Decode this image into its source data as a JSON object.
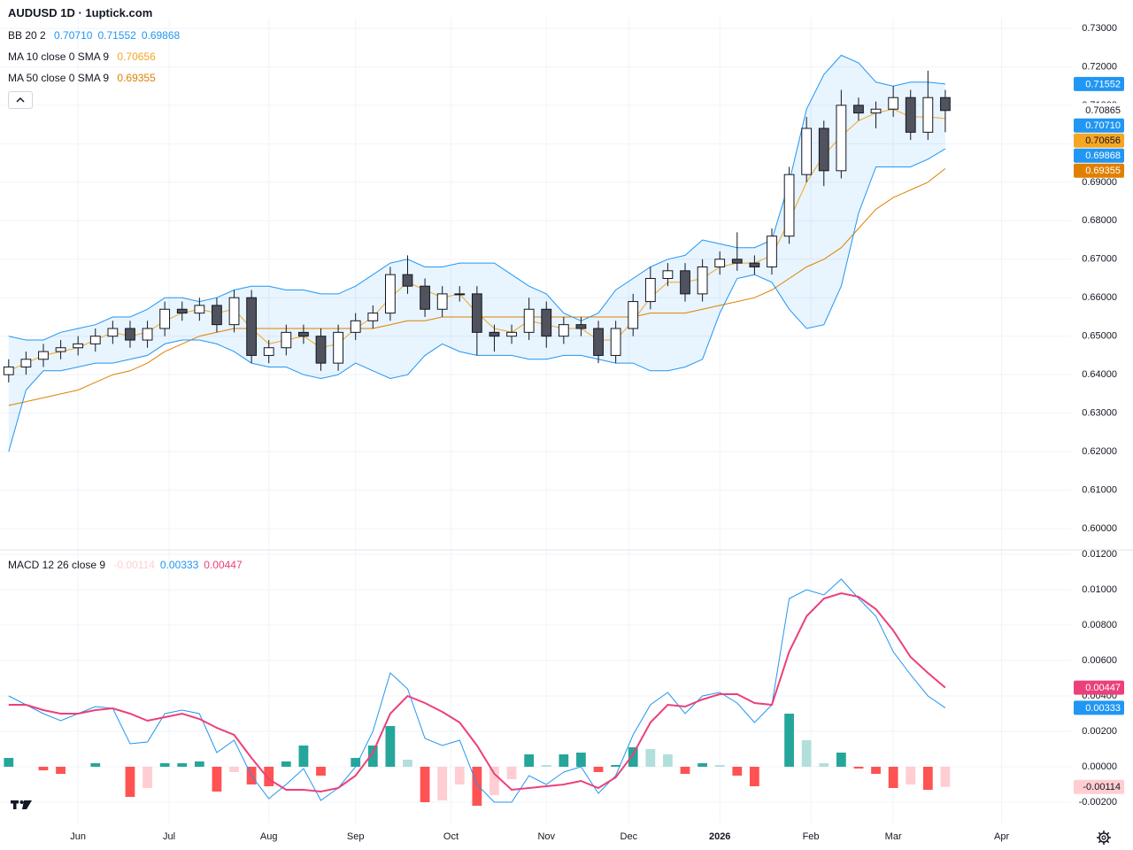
{
  "chart_data": {
    "type": "candlestick",
    "title": "AUDUSD 1D · 1uptick.com",
    "x": [
      2,
      6,
      10,
      14,
      18,
      22,
      26,
      30,
      34,
      38,
      42,
      46,
      50,
      54,
      58,
      62,
      66,
      70,
      74,
      78,
      82,
      86,
      90,
      94,
      98,
      102,
      106,
      110,
      114,
      118,
      122,
      126,
      130,
      134,
      138,
      142,
      146,
      150,
      154,
      158,
      162,
      166,
      170,
      174,
      178,
      182,
      186,
      190,
      194,
      198,
      202,
      206,
      210,
      214,
      218
    ],
    "open": [
      0.64,
      0.642,
      0.644,
      0.646,
      0.647,
      0.648,
      0.65,
      0.652,
      0.649,
      0.652,
      0.657,
      0.656,
      0.658,
      0.653,
      0.66,
      0.645,
      0.647,
      0.651,
      0.65,
      0.643,
      0.651,
      0.654,
      0.656,
      0.666,
      0.663,
      0.657,
      0.661,
      0.661,
      0.651,
      0.65,
      0.651,
      0.657,
      0.65,
      0.653,
      0.652,
      0.645,
      0.652,
      0.659,
      0.665,
      0.667,
      0.661,
      0.668,
      0.67,
      0.669,
      0.668,
      0.676,
      0.692,
      0.704,
      0.693,
      0.71,
      0.708,
      0.709,
      0.712,
      0.703,
      0.712
    ],
    "high": [
      0.644,
      0.646,
      0.648,
      0.649,
      0.65,
      0.652,
      0.654,
      0.654,
      0.654,
      0.659,
      0.659,
      0.66,
      0.66,
      0.662,
      0.662,
      0.649,
      0.653,
      0.653,
      0.652,
      0.653,
      0.656,
      0.658,
      0.668,
      0.671,
      0.665,
      0.663,
      0.663,
      0.663,
      0.653,
      0.653,
      0.66,
      0.659,
      0.655,
      0.655,
      0.654,
      0.654,
      0.661,
      0.668,
      0.669,
      0.669,
      0.67,
      0.672,
      0.677,
      0.671,
      0.678,
      0.694,
      0.707,
      0.706,
      0.714,
      0.712,
      0.711,
      0.715,
      0.714,
      0.719,
      0.714
    ],
    "low": [
      0.638,
      0.64,
      0.642,
      0.644,
      0.645,
      0.646,
      0.648,
      0.647,
      0.647,
      0.65,
      0.654,
      0.654,
      0.651,
      0.651,
      0.643,
      0.643,
      0.645,
      0.648,
      0.641,
      0.641,
      0.649,
      0.652,
      0.654,
      0.661,
      0.655,
      0.655,
      0.659,
      0.645,
      0.646,
      0.648,
      0.649,
      0.647,
      0.648,
      0.65,
      0.643,
      0.643,
      0.65,
      0.657,
      0.663,
      0.659,
      0.659,
      0.666,
      0.667,
      0.666,
      0.666,
      0.674,
      0.69,
      0.689,
      0.691,
      0.706,
      0.704,
      0.707,
      0.701,
      0.701,
      0.703
    ],
    "close": [
      0.642,
      0.644,
      0.646,
      0.647,
      0.648,
      0.65,
      0.652,
      0.649,
      0.652,
      0.657,
      0.656,
      0.658,
      0.653,
      0.66,
      0.645,
      0.647,
      0.651,
      0.65,
      0.643,
      0.651,
      0.654,
      0.656,
      0.666,
      0.663,
      0.657,
      0.661,
      0.661,
      0.651,
      0.65,
      0.651,
      0.657,
      0.65,
      0.653,
      0.652,
      0.645,
      0.652,
      0.659,
      0.665,
      0.667,
      0.661,
      0.668,
      0.67,
      0.669,
      0.668,
      0.676,
      0.692,
      0.704,
      0.693,
      0.71,
      0.708,
      0.709,
      0.712,
      0.703,
      0.712,
      0.70865
    ],
    "close_label": "0.70865",
    "up_color": "#ffffff",
    "down_color": "#50535e",
    "wick_color": "#131722",
    "xlim": [
      0,
      247
    ],
    "xticks": [
      {
        "value": 18,
        "label": "Jun"
      },
      {
        "value": 39,
        "label": "Jul"
      },
      {
        "value": 62,
        "label": "Aug"
      },
      {
        "value": 82,
        "label": "Sep"
      },
      {
        "value": 104,
        "label": "Oct"
      },
      {
        "value": 126,
        "label": "Nov"
      },
      {
        "value": 145,
        "label": "Dec"
      },
      {
        "value": 166,
        "label": "2026"
      },
      {
        "value": 187,
        "label": "Feb"
      },
      {
        "value": 206,
        "label": "Mar"
      },
      {
        "value": 231,
        "label": "Apr"
      }
    ],
    "ylim": [
      0.6,
      0.73
    ],
    "yticks": [
      {
        "value": 0.6,
        "label": "0.60000"
      },
      {
        "value": 0.61,
        "label": "0.61000"
      },
      {
        "value": 0.62,
        "label": "0.62000"
      },
      {
        "value": 0.63,
        "label": "0.63000"
      },
      {
        "value": 0.64,
        "label": "0.64000"
      },
      {
        "value": 0.65,
        "label": "0.65000"
      },
      {
        "value": 0.66,
        "label": "0.66000"
      },
      {
        "value": 0.67,
        "label": "0.67000"
      },
      {
        "value": 0.68,
        "label": "0.68000"
      },
      {
        "value": 0.69,
        "label": "0.69000"
      },
      {
        "value": 0.7,
        "label": "0.70000"
      },
      {
        "value": 0.71,
        "label": "0.71000"
      },
      {
        "value": 0.72,
        "label": "0.72000"
      },
      {
        "value": 0.73,
        "label": "0.73000"
      }
    ],
    "grid": true,
    "overlays": [
      {
        "name": "BB 20 2",
        "color": "#2196f3",
        "middle": [
          0.643,
          0.6425,
          0.645,
          0.646,
          0.647,
          0.648,
          0.649,
          0.6495,
          0.651,
          0.654,
          0.6545,
          0.654,
          0.654,
          0.654,
          0.653,
          0.6525,
          0.652,
          0.651,
          0.65,
          0.6505,
          0.653,
          0.6535,
          0.654,
          0.655,
          0.6565,
          0.658,
          0.6575,
          0.657,
          0.657,
          0.6555,
          0.6535,
          0.6525,
          0.6505,
          0.6495,
          0.65,
          0.6525,
          0.654,
          0.6545,
          0.6555,
          0.6565,
          0.6595,
          0.665,
          0.669,
          0.6695,
          0.6695,
          0.6735,
          0.6805,
          0.6855,
          0.693,
          0.7015,
          0.705,
          0.7045,
          0.705,
          0.706,
          0.7071
        ],
        "upper": [
          0.65,
          0.649,
          0.649,
          0.651,
          0.652,
          0.653,
          0.655,
          0.655,
          0.657,
          0.66,
          0.66,
          0.659,
          0.66,
          0.662,
          0.663,
          0.663,
          0.662,
          0.662,
          0.661,
          0.661,
          0.663,
          0.666,
          0.669,
          0.67,
          0.668,
          0.668,
          0.669,
          0.669,
          0.669,
          0.666,
          0.663,
          0.661,
          0.656,
          0.654,
          0.656,
          0.662,
          0.665,
          0.668,
          0.67,
          0.671,
          0.675,
          0.674,
          0.673,
          0.673,
          0.675,
          0.69,
          0.709,
          0.718,
          0.723,
          0.721,
          0.716,
          0.715,
          0.716,
          0.716,
          0.71552
        ],
        "lower": [
          0.62,
          0.636,
          0.641,
          0.641,
          0.642,
          0.643,
          0.643,
          0.644,
          0.645,
          0.648,
          0.649,
          0.649,
          0.648,
          0.646,
          0.643,
          0.642,
          0.642,
          0.64,
          0.639,
          0.64,
          0.643,
          0.641,
          0.639,
          0.64,
          0.645,
          0.648,
          0.646,
          0.645,
          0.645,
          0.645,
          0.644,
          0.644,
          0.645,
          0.645,
          0.644,
          0.643,
          0.643,
          0.641,
          0.641,
          0.642,
          0.644,
          0.656,
          0.665,
          0.666,
          0.664,
          0.657,
          0.652,
          0.653,
          0.663,
          0.682,
          0.694,
          0.694,
          0.694,
          0.696,
          0.69868
        ],
        "last_label": {
          "middle": "0.70710",
          "upper": "0.71552",
          "lower": "0.69868"
        }
      },
      {
        "name": "MA 10 close 0 SMA 9",
        "color": "#f5a623",
        "values": [
          0.641,
          0.643,
          0.645,
          0.646,
          0.647,
          0.649,
          0.651,
          0.65,
          0.651,
          0.654,
          0.656,
          0.657,
          0.656,
          0.657,
          0.652,
          0.648,
          0.649,
          0.65,
          0.647,
          0.648,
          0.652,
          0.655,
          0.66,
          0.664,
          0.662,
          0.66,
          0.661,
          0.656,
          0.652,
          0.651,
          0.654,
          0.653,
          0.652,
          0.652,
          0.649,
          0.649,
          0.654,
          0.66,
          0.664,
          0.664,
          0.665,
          0.668,
          0.669,
          0.669,
          0.671,
          0.68,
          0.69,
          0.697,
          0.702,
          0.706,
          0.708,
          0.709,
          0.707,
          0.707,
          0.70656
        ],
        "last_label": "0.70656"
      },
      {
        "name": "MA 50 close 0 SMA 9",
        "color": "#e08000",
        "values": [
          0.632,
          0.633,
          0.634,
          0.635,
          0.636,
          0.638,
          0.64,
          0.641,
          0.643,
          0.646,
          0.648,
          0.65,
          0.651,
          0.652,
          0.652,
          0.652,
          0.652,
          0.652,
          0.652,
          0.652,
          0.652,
          0.652,
          0.653,
          0.654,
          0.654,
          0.655,
          0.655,
          0.655,
          0.655,
          0.655,
          0.655,
          0.655,
          0.655,
          0.655,
          0.655,
          0.655,
          0.655,
          0.656,
          0.656,
          0.656,
          0.657,
          0.658,
          0.659,
          0.66,
          0.662,
          0.665,
          0.668,
          0.67,
          0.673,
          0.678,
          0.683,
          0.686,
          0.688,
          0.69,
          0.69355
        ],
        "last_label": "0.69355"
      }
    ],
    "macd": {
      "name": "MACD 12 26 close 9",
      "ylim": [
        -0.002,
        0.012
      ],
      "yticks": [
        {
          "value": 0.012,
          "label": "0.01200"
        },
        {
          "value": 0.01,
          "label": "0.01000"
        },
        {
          "value": 0.008,
          "label": "0.00800"
        },
        {
          "value": 0.006,
          "label": "0.00600"
        },
        {
          "value": 0.004,
          "label": "0.00400"
        },
        {
          "value": 0.002,
          "label": "0.00200"
        },
        {
          "value": 0,
          "label": "0.00000"
        },
        {
          "value": -0.002,
          "label": "-0.00200"
        }
      ],
      "histogram": {
        "colors": [
          "#26a69a",
          "#b2dfdb",
          "#ff5252",
          "#ffcdd2"
        ],
        "values": [
          0.0005,
          0,
          -0.0002,
          -0.0004,
          0,
          0.0002,
          0,
          -0.0017,
          -0.0012,
          0.0002,
          0.0002,
          0.0003,
          -0.0014,
          -0.0003,
          -0.001,
          -0.0011,
          0.0003,
          0.0012,
          -0.0005,
          0,
          0.0005,
          0.0012,
          0.0023,
          0.0004,
          -0.002,
          -0.0019,
          -0.001,
          -0.0022,
          -0.0016,
          -0.0007,
          0.0007,
          0.0001,
          0.0007,
          0.0008,
          -0.0003,
          0.0001,
          0.0011,
          0.001,
          0.0007,
          -0.0004,
          0.0002,
          0.0001,
          -0.0005,
          -0.0011,
          0,
          0.003,
          0.0015,
          0.0002,
          0.0008,
          -0.0001,
          -0.0004,
          -0.0012,
          -0.001,
          -0.0013,
          -0.00114
        ],
        "last_label": "-0.00114"
      },
      "macd": {
        "color": "#2196f3",
        "values": [
          0.004,
          0.0035,
          0.003,
          0.0026,
          0.003,
          0.0034,
          0.0033,
          0.0013,
          0.0014,
          0.003,
          0.0032,
          0.003,
          0.0008,
          0.0015,
          -0.0005,
          -0.0018,
          -0.001,
          -0.0001,
          -0.0019,
          -0.0012,
          0.0,
          0.002,
          0.0053,
          0.0044,
          0.0016,
          0.0012,
          0.0015,
          -0.001,
          -0.002,
          -0.002,
          -0.0005,
          -0.001,
          -0.0003,
          0.0,
          -0.0015,
          -0.0005,
          0.0018,
          0.0035,
          0.0042,
          0.003,
          0.004,
          0.0042,
          0.0036,
          0.0025,
          0.0035,
          0.0095,
          0.01,
          0.0097,
          0.0106,
          0.0095,
          0.0085,
          0.0065,
          0.0052,
          0.004,
          0.00333
        ],
        "last_label": "0.00333"
      },
      "signal": {
        "color": "#ec407a",
        "values": [
          0.0035,
          0.0035,
          0.0032,
          0.003,
          0.003,
          0.0032,
          0.0033,
          0.003,
          0.0026,
          0.0028,
          0.003,
          0.0027,
          0.0022,
          0.0018,
          0.0005,
          -0.0007,
          -0.0013,
          -0.0013,
          -0.0014,
          -0.0012,
          -0.0005,
          0.0008,
          0.003,
          0.004,
          0.0036,
          0.0031,
          0.0025,
          0.0012,
          -0.0004,
          -0.0013,
          -0.0012,
          -0.0011,
          -0.001,
          -0.0008,
          -0.0012,
          -0.0006,
          0.0007,
          0.0025,
          0.0035,
          0.0034,
          0.0038,
          0.0041,
          0.0041,
          0.0036,
          0.0035,
          0.0065,
          0.0085,
          0.0095,
          0.0098,
          0.0096,
          0.0089,
          0.0077,
          0.0062,
          0.0053,
          0.00447
        ],
        "last_label": "0.00447"
      }
    }
  }
}
